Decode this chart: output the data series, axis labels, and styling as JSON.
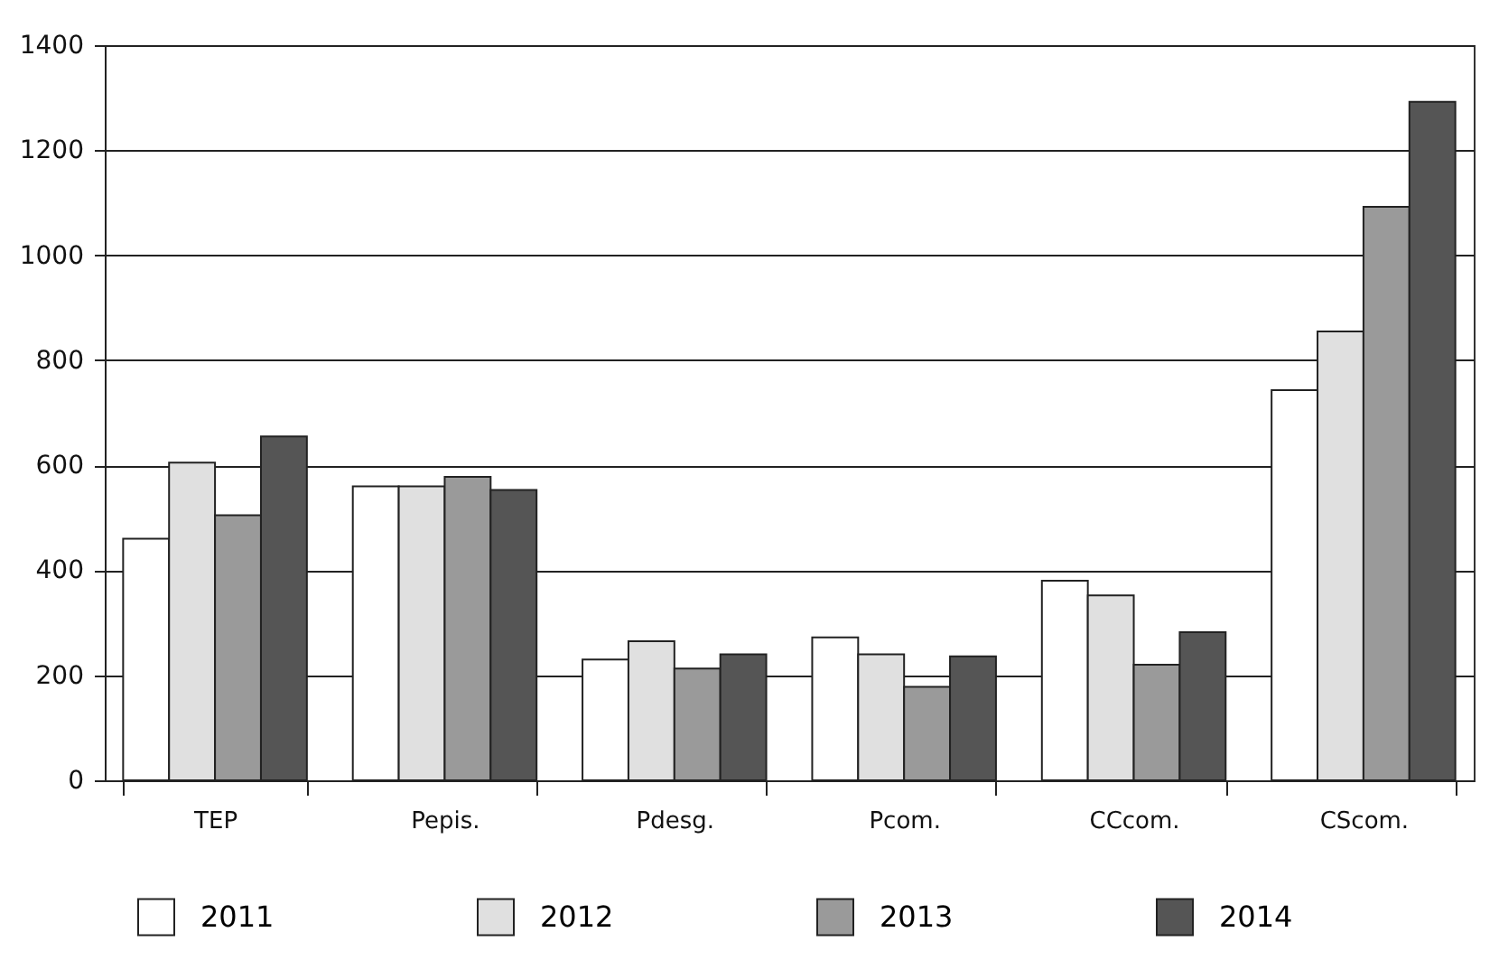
{
  "chart_data": {
    "type": "bar",
    "categories": [
      "TEP",
      "Pepis.",
      "Pdesg.",
      "Pcom.",
      "CCcom.",
      "CScom."
    ],
    "series": [
      {
        "name": "2011",
        "color": "#ffffff",
        "values": [
          460,
          560,
          230,
          272,
          380,
          743
        ]
      },
      {
        "name": "2012",
        "color": "#e0e0e0",
        "values": [
          605,
          560,
          265,
          240,
          352,
          855
        ]
      },
      {
        "name": "2013",
        "color": "#9a9a9a",
        "values": [
          505,
          578,
          213,
          178,
          220,
          1092
        ]
      },
      {
        "name": "2014",
        "color": "#555555",
        "values": [
          655,
          553,
          240,
          236,
          282,
          1292
        ]
      }
    ],
    "ylim": [
      0,
      1400
    ],
    "yticks": [
      0,
      200,
      400,
      600,
      800,
      1000,
      1200,
      1400
    ],
    "grid": "y",
    "legend": "bottom"
  }
}
